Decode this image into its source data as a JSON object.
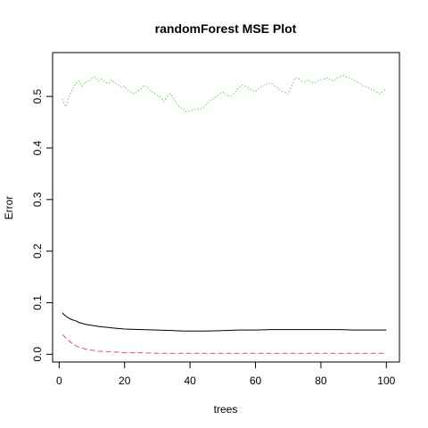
{
  "chart_data": {
    "type": "line",
    "title": "randomForest MSE Plot",
    "xlabel": "trees",
    "ylabel": "Error",
    "xlim": [
      -2,
      104
    ],
    "ylim": [
      -0.015,
      0.585
    ],
    "xticks": [
      0,
      20,
      40,
      60,
      80,
      100
    ],
    "yticks": [
      0.0,
      0.1,
      0.2,
      0.3,
      0.4,
      0.5
    ],
    "ytick_labels": [
      "0.0",
      "0.1",
      "0.2",
      "0.3",
      "0.4",
      "0.5"
    ],
    "grid": false,
    "legend": "none",
    "series": [
      {
        "color": "#000000",
        "dash": "solid",
        "x": [
          1,
          2,
          3,
          4,
          5,
          6,
          7,
          8,
          10,
          12,
          15,
          18,
          20,
          25,
          30,
          35,
          38,
          40,
          45,
          50,
          55,
          60,
          65,
          70,
          75,
          80,
          85,
          90,
          95,
          100
        ],
        "y": [
          0.08,
          0.074,
          0.07,
          0.067,
          0.065,
          0.062,
          0.06,
          0.058,
          0.056,
          0.054,
          0.052,
          0.05,
          0.049,
          0.048,
          0.047,
          0.046,
          0.045,
          0.045,
          0.045,
          0.046,
          0.047,
          0.047,
          0.048,
          0.048,
          0.048,
          0.048,
          0.048,
          0.047,
          0.047,
          0.047
        ]
      },
      {
        "color": "#DF536B",
        "dash": "dashed",
        "x": [
          1,
          2,
          3,
          4,
          5,
          6,
          8,
          10,
          12,
          15,
          18,
          20,
          25,
          30,
          40,
          50,
          60,
          70,
          80,
          90,
          100
        ],
        "y": [
          0.038,
          0.032,
          0.026,
          0.021,
          0.017,
          0.014,
          0.01,
          0.008,
          0.006,
          0.005,
          0.004,
          0.003,
          0.003,
          0.002,
          0.002,
          0.002,
          0.002,
          0.002,
          0.002,
          0.002,
          0.002
        ]
      },
      {
        "color": "#61D04F",
        "dash": "dotted",
        "x": [
          1,
          2,
          3,
          4,
          5,
          6,
          7,
          8,
          9,
          10,
          11,
          12,
          13,
          14,
          15,
          16,
          17,
          18,
          19,
          20,
          21,
          22,
          23,
          24,
          25,
          26,
          27,
          28,
          29,
          30,
          31,
          32,
          33,
          34,
          35,
          36,
          37,
          38,
          39,
          40,
          41,
          42,
          43,
          44,
          45,
          46,
          47,
          48,
          49,
          50,
          51,
          52,
          53,
          54,
          55,
          56,
          57,
          58,
          59,
          60,
          61,
          62,
          63,
          64,
          65,
          66,
          67,
          68,
          69,
          70,
          71,
          72,
          73,
          74,
          75,
          76,
          77,
          78,
          79,
          80,
          81,
          82,
          83,
          84,
          85,
          86,
          87,
          88,
          89,
          90,
          91,
          92,
          93,
          94,
          95,
          96,
          97,
          98,
          99,
          100
        ],
        "y": [
          0.495,
          0.48,
          0.5,
          0.512,
          0.525,
          0.53,
          0.52,
          0.528,
          0.53,
          0.535,
          0.538,
          0.53,
          0.534,
          0.528,
          0.525,
          0.532,
          0.526,
          0.522,
          0.518,
          0.52,
          0.512,
          0.508,
          0.505,
          0.51,
          0.515,
          0.522,
          0.518,
          0.51,
          0.508,
          0.502,
          0.498,
          0.49,
          0.5,
          0.505,
          0.495,
          0.485,
          0.478,
          0.475,
          0.47,
          0.472,
          0.474,
          0.476,
          0.475,
          0.478,
          0.485,
          0.492,
          0.495,
          0.5,
          0.505,
          0.508,
          0.504,
          0.5,
          0.502,
          0.51,
          0.518,
          0.522,
          0.52,
          0.516,
          0.512,
          0.51,
          0.515,
          0.52,
          0.522,
          0.526,
          0.525,
          0.52,
          0.515,
          0.51,
          0.508,
          0.505,
          0.52,
          0.535,
          0.536,
          0.53,
          0.528,
          0.532,
          0.528,
          0.526,
          0.53,
          0.532,
          0.534,
          0.536,
          0.532,
          0.53,
          0.535,
          0.538,
          0.54,
          0.537,
          0.535,
          0.532,
          0.528,
          0.525,
          0.52,
          0.518,
          0.515,
          0.512,
          0.508,
          0.505,
          0.51,
          0.515
        ]
      }
    ]
  }
}
